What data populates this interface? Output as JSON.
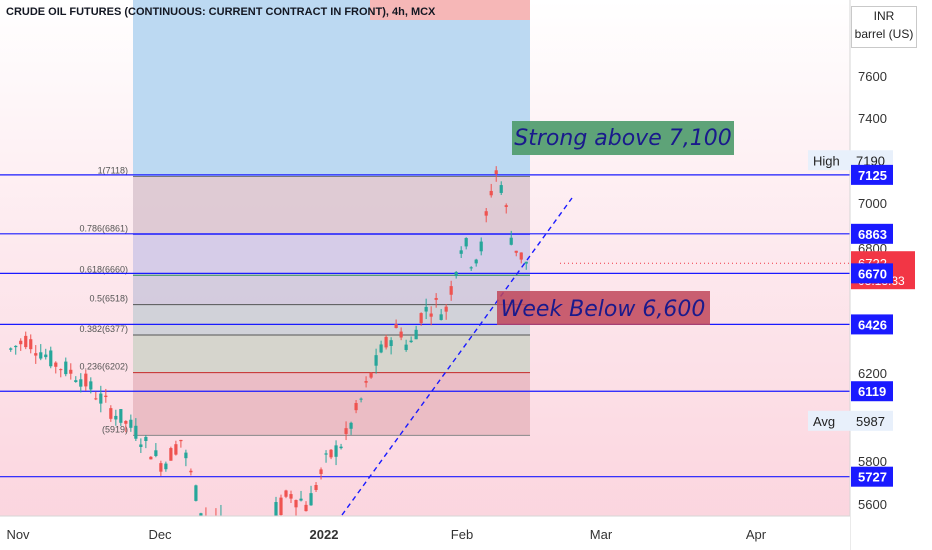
{
  "header": {
    "title": "CRUDE OIL FUTURES (CONTINUOUS: CURRENT CONTRACT IN FRONT), 4h, MCX"
  },
  "scale": {
    "currency": "INR",
    "unit": "barrel (US)"
  },
  "colors": {
    "level_line": "#1a1aff",
    "price_tag_blue": "#1a1aff",
    "price_tag_red": "#f23645",
    "candle_up": "#26a69a",
    "candle_down": "#ef5350",
    "green_note_bg": "#4c9a6a",
    "red_note_bg": "#c0475b",
    "note_text": "#1a1a8c"
  },
  "annotations": {
    "strong": "Strong above 7,100",
    "weak": "Week Below 6,600"
  },
  "chart_data": {
    "type": "candlestick",
    "title": "CRUDE OIL FUTURES (CONTINUOUS: CURRENT CONTRACT IN FRONT), 4h, MCX",
    "x_ticks": [
      "Nov",
      "Dec",
      "2022",
      "Feb",
      "Mar",
      "Apr"
    ],
    "y_ticks": [
      5600,
      5800,
      6000,
      6200,
      6800,
      7000,
      7400,
      7600
    ],
    "ylim": [
      5550,
      7750
    ],
    "grid": false,
    "horizontal_levels": [
      7125,
      6863,
      6670,
      6426,
      6119,
      5727
    ],
    "price_tags": [
      {
        "label": "High",
        "value": "7190"
      },
      {
        "label": "",
        "value": "7125"
      },
      {
        "label": "",
        "value": "6863"
      },
      {
        "label": "",
        "value": "6722",
        "sub": "03:13:33"
      },
      {
        "label": "",
        "value": "6670"
      },
      {
        "label": "",
        "value": "6426"
      },
      {
        "label": "",
        "value": "6119"
      },
      {
        "label": "Avg",
        "value": "5987"
      },
      {
        "label": "",
        "value": "5727"
      }
    ],
    "fib_levels": [
      {
        "label": "1(7118)",
        "value": 7118
      },
      {
        "label": "0.786(6861)",
        "value": 6861
      },
      {
        "label": "0.618(6660)",
        "value": 6660
      },
      {
        "label": "0.5(6518)",
        "value": 6518
      },
      {
        "label": "0.382(6377)",
        "value": 6377
      },
      {
        "label": "0.236(6202)",
        "value": 6202
      },
      {
        "label": "(5919)",
        "value": 5919
      }
    ],
    "price_path": [
      {
        "t": 0,
        "v": 6300
      },
      {
        "t": 2,
        "v": 6360
      },
      {
        "t": 5,
        "v": 6250
      },
      {
        "t": 8,
        "v": 6180
      },
      {
        "t": 11,
        "v": 6050
      },
      {
        "t": 14,
        "v": 5940
      },
      {
        "t": 17,
        "v": 5780
      },
      {
        "t": 19,
        "v": 5900
      },
      {
        "t": 21,
        "v": 5600
      },
      {
        "t": 24,
        "v": 5500
      },
      {
        "t": 28,
        "v": 5500
      },
      {
        "t": 31,
        "v": 5650
      },
      {
        "t": 33,
        "v": 5600
      },
      {
        "t": 35,
        "v": 5800
      },
      {
        "t": 37,
        "v": 5900
      },
      {
        "t": 39,
        "v": 6100
      },
      {
        "t": 41,
        "v": 6300
      },
      {
        "t": 43,
        "v": 6420
      },
      {
        "t": 44,
        "v": 6300
      },
      {
        "t": 45.5,
        "v": 6480
      },
      {
        "t": 47,
        "v": 6520
      },
      {
        "t": 48,
        "v": 6470
      },
      {
        "t": 49,
        "v": 6650
      },
      {
        "t": 50,
        "v": 6850
      },
      {
        "t": 51,
        "v": 6720
      },
      {
        "t": 52,
        "v": 6800
      },
      {
        "t": 53.5,
        "v": 7150
      },
      {
        "t": 54.5,
        "v": 7050
      },
      {
        "t": 55,
        "v": 6880
      },
      {
        "t": 56,
        "v": 6780
      },
      {
        "t": 57,
        "v": 6722
      }
    ]
  }
}
